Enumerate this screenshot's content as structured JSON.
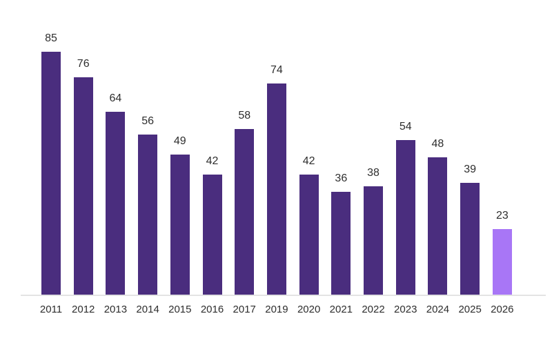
{
  "chart_data": {
    "type": "bar",
    "title": "",
    "xlabel": "",
    "ylabel": "",
    "categories": [
      "2011",
      "2012",
      "2013",
      "2014",
      "2015",
      "2016",
      "2017",
      "2019",
      "2020",
      "2021",
      "2022",
      "2023",
      "2024",
      "2025",
      "2026"
    ],
    "values": [
      85,
      76,
      64,
      56,
      49,
      42,
      58,
      74,
      42,
      36,
      38,
      54,
      48,
      39,
      23
    ],
    "data_labels": true,
    "ylim": [
      0,
      85
    ],
    "grid": false,
    "legend": false,
    "axis_line_color": "#e3e3e3",
    "label_text_color": "#2d2d2d",
    "bar_color": "#4a2d7e",
    "highlight_bar_color": "#a876f6",
    "highlight_category": "2026",
    "highlight_index": 14
  }
}
